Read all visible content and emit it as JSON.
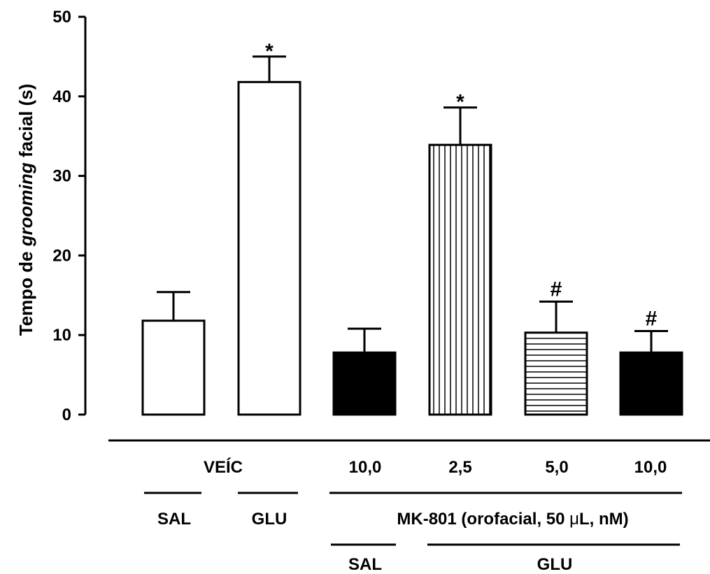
{
  "chart_data": {
    "type": "bar",
    "ylabel_parts": [
      "Tempo de ",
      "grooming",
      " facial (s)"
    ],
    "ylim": [
      0,
      50
    ],
    "yticks": [
      "0",
      "10",
      "20",
      "30",
      "40",
      "50"
    ],
    "grid": false,
    "categories": [
      "SAL + VEÍC",
      "GLU + VEÍC",
      "SAL + MK-801 10,0",
      "GLU + MK-801 2,5",
      "GLU + MK-801 5,0",
      "GLU + MK-801 10,0"
    ],
    "values": [
      11.8,
      41.8,
      7.8,
      33.9,
      10.3,
      7.8
    ],
    "errors": [
      3.6,
      3.2,
      3.0,
      4.7,
      3.9,
      2.7
    ],
    "annotations": [
      "",
      "*",
      "",
      "*",
      "#",
      "#"
    ],
    "fills": [
      "white",
      "white",
      "black",
      "vertical-lines",
      "horizontal-lines",
      "black"
    ],
    "x_row1": {
      "veic": "VEÍC",
      "doses": [
        "10,0",
        "2,5",
        "5,0",
        "10,0"
      ]
    },
    "x_row2": {
      "sal": "SAL",
      "glu": "GLU",
      "mk": "MK-801 (orofacial, 50 ",
      "mu": "μ",
      "mk_end": "L, nM)"
    },
    "x_row3": {
      "sal": "SAL",
      "glu": "GLU"
    }
  }
}
